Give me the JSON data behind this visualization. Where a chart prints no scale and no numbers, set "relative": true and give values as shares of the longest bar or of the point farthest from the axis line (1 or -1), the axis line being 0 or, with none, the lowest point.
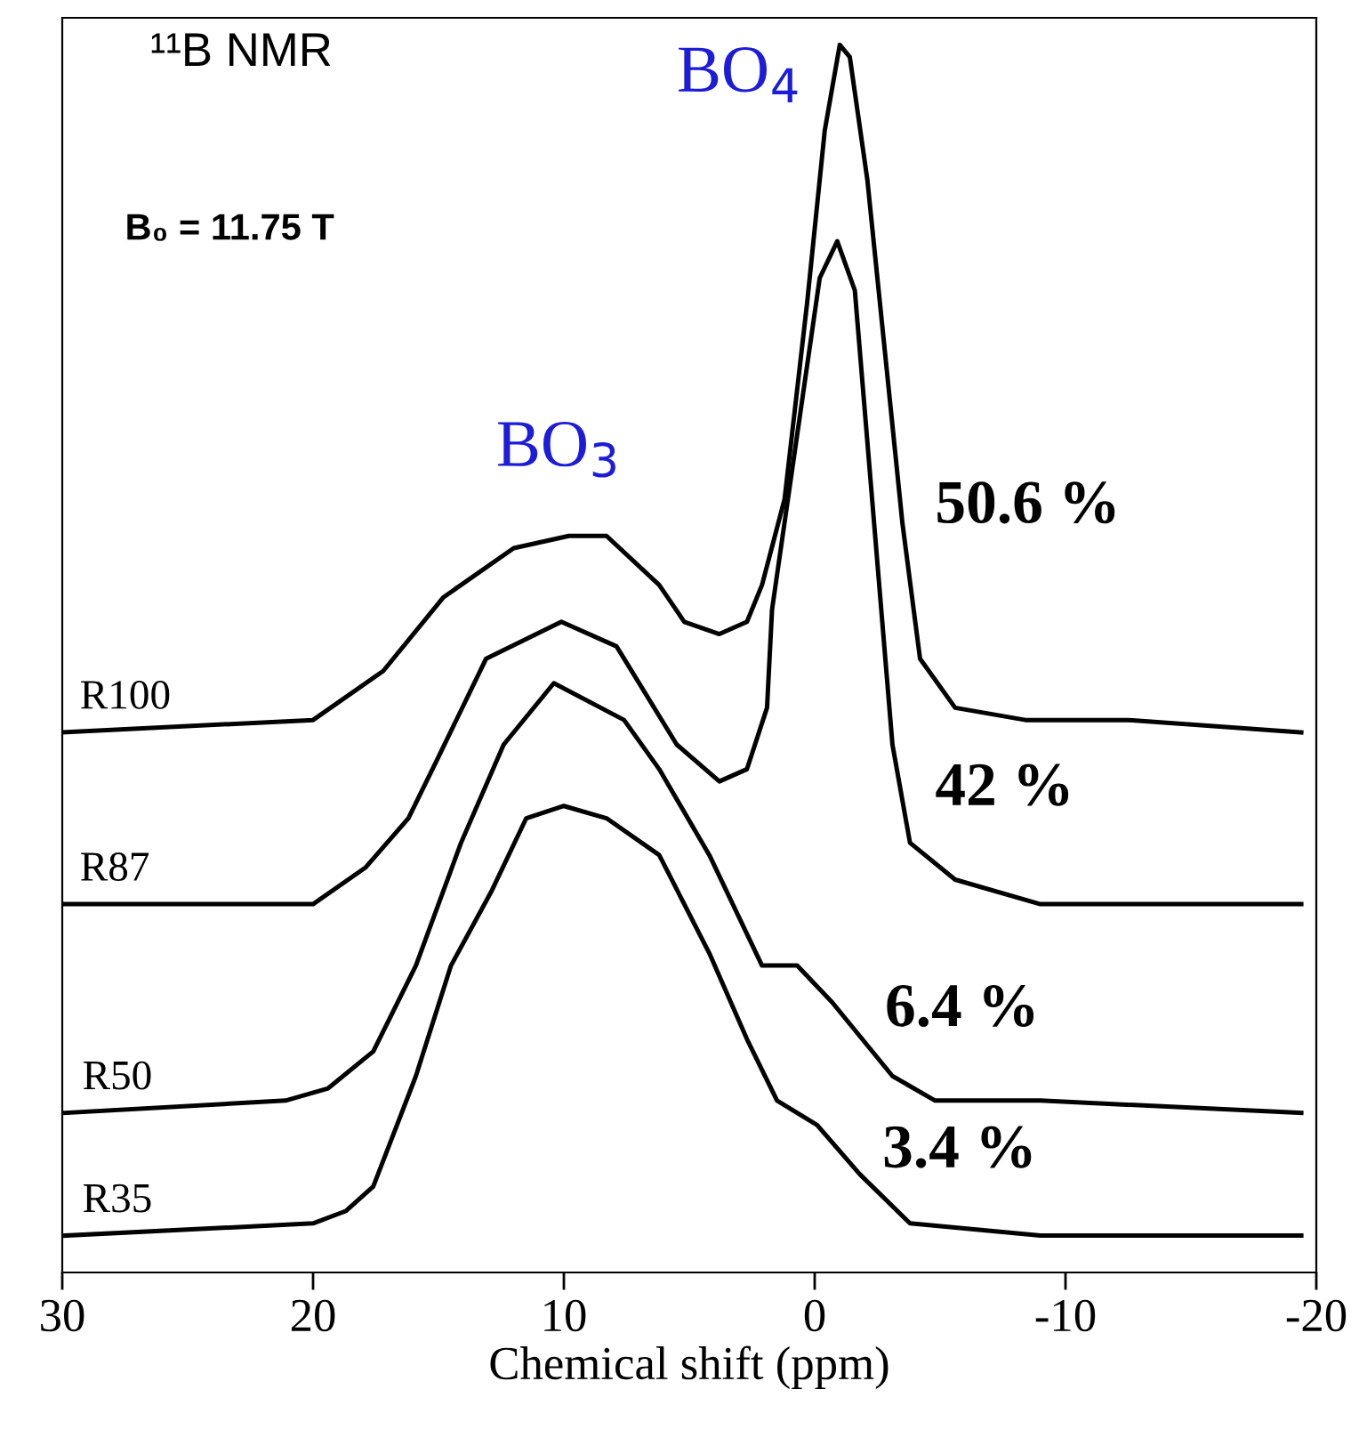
{
  "chart_data": {
    "type": "line",
    "relative": true,
    "xlabel": "Chemical shift (ppm)",
    "xlim": [
      30,
      -20
    ],
    "xticks": [
      30,
      20,
      10,
      0,
      {
        "value": -10,
        "label": "-10"
      },
      {
        "value": -20,
        "label": "-20"
      }
    ],
    "grid": false,
    "legend": false,
    "marker": "none",
    "line_style": "solid",
    "annotations": [
      "¹¹B NMR",
      "B₀ = 11.75 T",
      "BO$_{3}$",
      "BO$_{4}$",
      "50.6 %",
      "42 %",
      "6.4 %",
      "3.4 %"
    ],
    "series": [
      {
        "name": "R100",
        "color": "#000000",
        "x": [
          30,
          20.0,
          17.2,
          14.8,
          12.0,
          9.8,
          8.3,
          6.2,
          5.2,
          3.8,
          2.7,
          2.1,
          1.2,
          0.3,
          -0.4,
          -1.0,
          -1.4,
          -2.1,
          -2.8,
          -3.5,
          -4.2,
          -5.6,
          -8.4,
          -12.5,
          -19.4
        ],
        "values": [
          0.44,
          0.45,
          0.49,
          0.55,
          0.59,
          0.6,
          0.6,
          0.56,
          0.53,
          0.52,
          0.53,
          0.56,
          0.63,
          0.79,
          0.93,
          1.0,
          0.99,
          0.89,
          0.75,
          0.61,
          0.5,
          0.46,
          0.45,
          0.45,
          0.44
        ]
      },
      {
        "name": "R87",
        "color": "#000000",
        "x": [
          30,
          20.0,
          17.9,
          16.2,
          15.0,
          13.1,
          10.1,
          7.9,
          5.5,
          3.8,
          2.7,
          1.9,
          1.7,
          -0.2,
          -0.9,
          -1.6,
          -3.1,
          -3.8,
          -5.6,
          -9.0,
          -19.4
        ],
        "values": [
          0.3,
          0.3,
          0.33,
          0.37,
          0.42,
          0.5,
          0.53,
          0.51,
          0.43,
          0.4,
          0.41,
          0.46,
          0.54,
          0.81,
          0.84,
          0.8,
          0.43,
          0.35,
          0.32,
          0.3,
          0.3
        ]
      },
      {
        "name": "R50",
        "color": "#000000",
        "x": [
          29.9,
          21.1,
          19.4,
          17.6,
          15.9,
          14.1,
          12.4,
          10.4,
          7.6,
          6.2,
          4.2,
          2.1,
          0.7,
          -0.7,
          -3.1,
          -4.8,
          -9.0,
          -19.4
        ],
        "values": [
          0.13,
          0.14,
          0.15,
          0.18,
          0.25,
          0.35,
          0.43,
          0.48,
          0.45,
          0.41,
          0.34,
          0.25,
          0.25,
          0.22,
          0.16,
          0.14,
          0.14,
          0.13
        ]
      },
      {
        "name": "R35",
        "color": "#000000",
        "x": [
          29.9,
          20.0,
          18.7,
          17.6,
          15.9,
          14.5,
          12.9,
          11.5,
          10.0,
          8.3,
          6.2,
          4.2,
          2.7,
          1.5,
          -0.1,
          -1.8,
          -3.8,
          -9.0,
          -19.4
        ],
        "values": [
          0.03,
          0.04,
          0.05,
          0.07,
          0.16,
          0.25,
          0.31,
          0.37,
          0.38,
          0.37,
          0.34,
          0.26,
          0.19,
          0.14,
          0.12,
          0.08,
          0.04,
          0.03,
          0.03
        ]
      }
    ]
  }
}
